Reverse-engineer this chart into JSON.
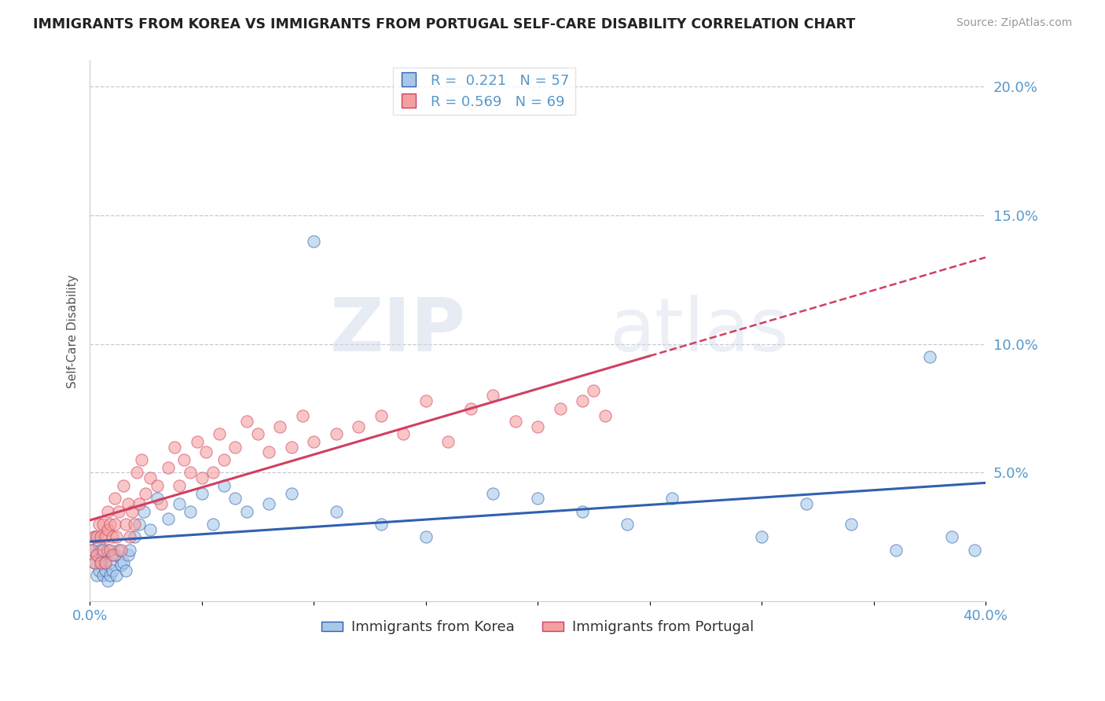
{
  "title": "IMMIGRANTS FROM KOREA VS IMMIGRANTS FROM PORTUGAL SELF-CARE DISABILITY CORRELATION CHART",
  "source": "Source: ZipAtlas.com",
  "ylabel": "Self-Care Disability",
  "xlim": [
    0.0,
    0.4
  ],
  "ylim": [
    0.0,
    0.21
  ],
  "xticks": [
    0.0,
    0.05,
    0.1,
    0.15,
    0.2,
    0.25,
    0.3,
    0.35,
    0.4
  ],
  "xtick_labels": [
    "0.0%",
    "",
    "",
    "",
    "",
    "",
    "",
    "",
    "40.0%"
  ],
  "yticks": [
    0.0,
    0.05,
    0.1,
    0.15,
    0.2
  ],
  "ytick_labels": [
    "",
    "5.0%",
    "10.0%",
    "15.0%",
    "20.0%"
  ],
  "korea_R": 0.221,
  "korea_N": 57,
  "portugal_R": 0.569,
  "portugal_N": 69,
  "korea_color": "#a8c8e8",
  "portugal_color": "#f4a0a0",
  "korea_line_color": "#3060b0",
  "portugal_line_color": "#d04060",
  "portugal_line_solid_end": 0.25,
  "background_color": "#ffffff",
  "grid_color": "#c8c8d8",
  "title_color": "#222222",
  "axis_color": "#5599cc",
  "source_color": "#999999",
  "legend_label_korea": "Immigrants from Korea",
  "legend_label_portugal": "Immigrants from Portugal",
  "korea_x": [
    0.001,
    0.002,
    0.002,
    0.003,
    0.003,
    0.004,
    0.004,
    0.005,
    0.005,
    0.006,
    0.006,
    0.007,
    0.007,
    0.008,
    0.008,
    0.009,
    0.009,
    0.01,
    0.011,
    0.012,
    0.013,
    0.014,
    0.015,
    0.016,
    0.017,
    0.018,
    0.02,
    0.022,
    0.024,
    0.027,
    0.03,
    0.035,
    0.04,
    0.045,
    0.05,
    0.055,
    0.06,
    0.065,
    0.07,
    0.08,
    0.09,
    0.1,
    0.11,
    0.13,
    0.15,
    0.18,
    0.2,
    0.22,
    0.24,
    0.26,
    0.3,
    0.32,
    0.34,
    0.36,
    0.375,
    0.385,
    0.395
  ],
  "korea_y": [
    0.02,
    0.015,
    0.025,
    0.01,
    0.018,
    0.012,
    0.022,
    0.015,
    0.02,
    0.01,
    0.018,
    0.012,
    0.015,
    0.008,
    0.02,
    0.01,
    0.015,
    0.012,
    0.018,
    0.01,
    0.02,
    0.014,
    0.015,
    0.012,
    0.018,
    0.02,
    0.025,
    0.03,
    0.035,
    0.028,
    0.04,
    0.032,
    0.038,
    0.035,
    0.042,
    0.03,
    0.045,
    0.04,
    0.035,
    0.038,
    0.042,
    0.14,
    0.035,
    0.03,
    0.025,
    0.042,
    0.04,
    0.035,
    0.03,
    0.04,
    0.025,
    0.038,
    0.03,
    0.02,
    0.095,
    0.025,
    0.02
  ],
  "portugal_x": [
    0.001,
    0.002,
    0.002,
    0.003,
    0.003,
    0.004,
    0.005,
    0.005,
    0.006,
    0.006,
    0.007,
    0.007,
    0.008,
    0.008,
    0.009,
    0.009,
    0.01,
    0.01,
    0.011,
    0.011,
    0.012,
    0.013,
    0.014,
    0.015,
    0.016,
    0.017,
    0.018,
    0.019,
    0.02,
    0.021,
    0.022,
    0.023,
    0.025,
    0.027,
    0.03,
    0.032,
    0.035,
    0.038,
    0.04,
    0.042,
    0.045,
    0.048,
    0.05,
    0.052,
    0.055,
    0.058,
    0.06,
    0.065,
    0.07,
    0.075,
    0.08,
    0.085,
    0.09,
    0.095,
    0.1,
    0.11,
    0.12,
    0.13,
    0.14,
    0.15,
    0.16,
    0.17,
    0.18,
    0.19,
    0.2,
    0.21,
    0.22,
    0.225,
    0.23
  ],
  "portugal_y": [
    0.02,
    0.025,
    0.015,
    0.018,
    0.025,
    0.03,
    0.015,
    0.025,
    0.02,
    0.03,
    0.025,
    0.015,
    0.028,
    0.035,
    0.02,
    0.03,
    0.025,
    0.018,
    0.03,
    0.04,
    0.025,
    0.035,
    0.02,
    0.045,
    0.03,
    0.038,
    0.025,
    0.035,
    0.03,
    0.05,
    0.038,
    0.055,
    0.042,
    0.048,
    0.045,
    0.038,
    0.052,
    0.06,
    0.045,
    0.055,
    0.05,
    0.062,
    0.048,
    0.058,
    0.05,
    0.065,
    0.055,
    0.06,
    0.07,
    0.065,
    0.058,
    0.068,
    0.06,
    0.072,
    0.062,
    0.065,
    0.068,
    0.072,
    0.065,
    0.078,
    0.062,
    0.075,
    0.08,
    0.07,
    0.068,
    0.075,
    0.078,
    0.082,
    0.072
  ],
  "watermark_zip": "ZIP",
  "watermark_atlas": "atlas",
  "figsize": [
    14.06,
    8.92
  ],
  "dpi": 100
}
